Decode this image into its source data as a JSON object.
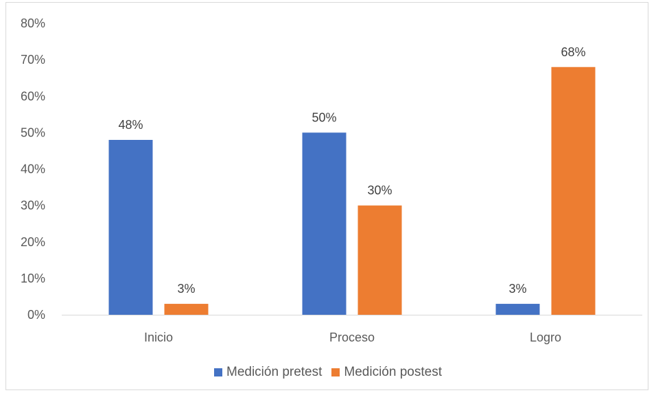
{
  "chart_data": {
    "type": "bar",
    "title": "",
    "xlabel": "",
    "ylabel": "",
    "categories": [
      "Inicio",
      "Proceso",
      "Logro"
    ],
    "series": [
      {
        "name": "Medición pretest",
        "values": [
          48,
          50,
          3
        ],
        "labels": [
          "48%",
          "50%",
          "3%"
        ],
        "color": "#4472C4"
      },
      {
        "name": "Medición postest",
        "values": [
          3,
          30,
          68
        ],
        "labels": [
          "3%",
          "30%",
          "68%"
        ],
        "color": "#ED7D31"
      }
    ],
    "ylim": [
      0,
      80
    ],
    "yticks": [
      "0%",
      "10%",
      "20%",
      "30%",
      "40%",
      "50%",
      "60%",
      "70%",
      "80%"
    ],
    "grid": false,
    "legend_position": "bottom"
  }
}
